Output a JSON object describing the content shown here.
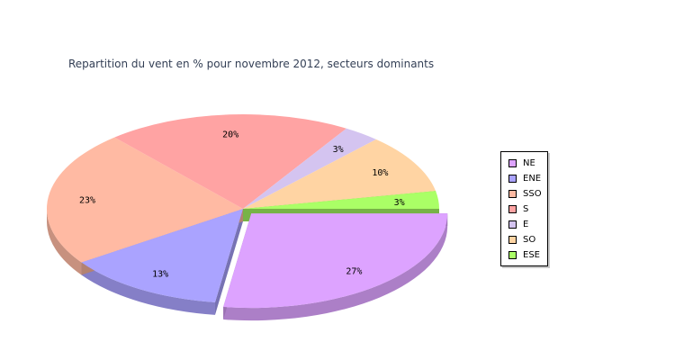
{
  "chart_data": {
    "type": "pie",
    "title": "Repartition du vent en % pour novembre 2012, secteurs dominants",
    "categories": [
      "NE",
      "ENE",
      "SSO",
      "S",
      "E",
      "SO",
      "ESE"
    ],
    "values": [
      27,
      13,
      23,
      20,
      3,
      10,
      3
    ],
    "labels": [
      "27%",
      "13%",
      "23%",
      "20%",
      "3%",
      "10%",
      "3%"
    ],
    "colors": [
      "#dda3ff",
      "#aaa3ff",
      "#ffbaa3",
      "#ffa3a3",
      "#d4c4f0",
      "#ffd4a3",
      "#aaff66"
    ],
    "exploded": [
      "NE"
    ],
    "legend_position": "right",
    "three_d": true
  }
}
